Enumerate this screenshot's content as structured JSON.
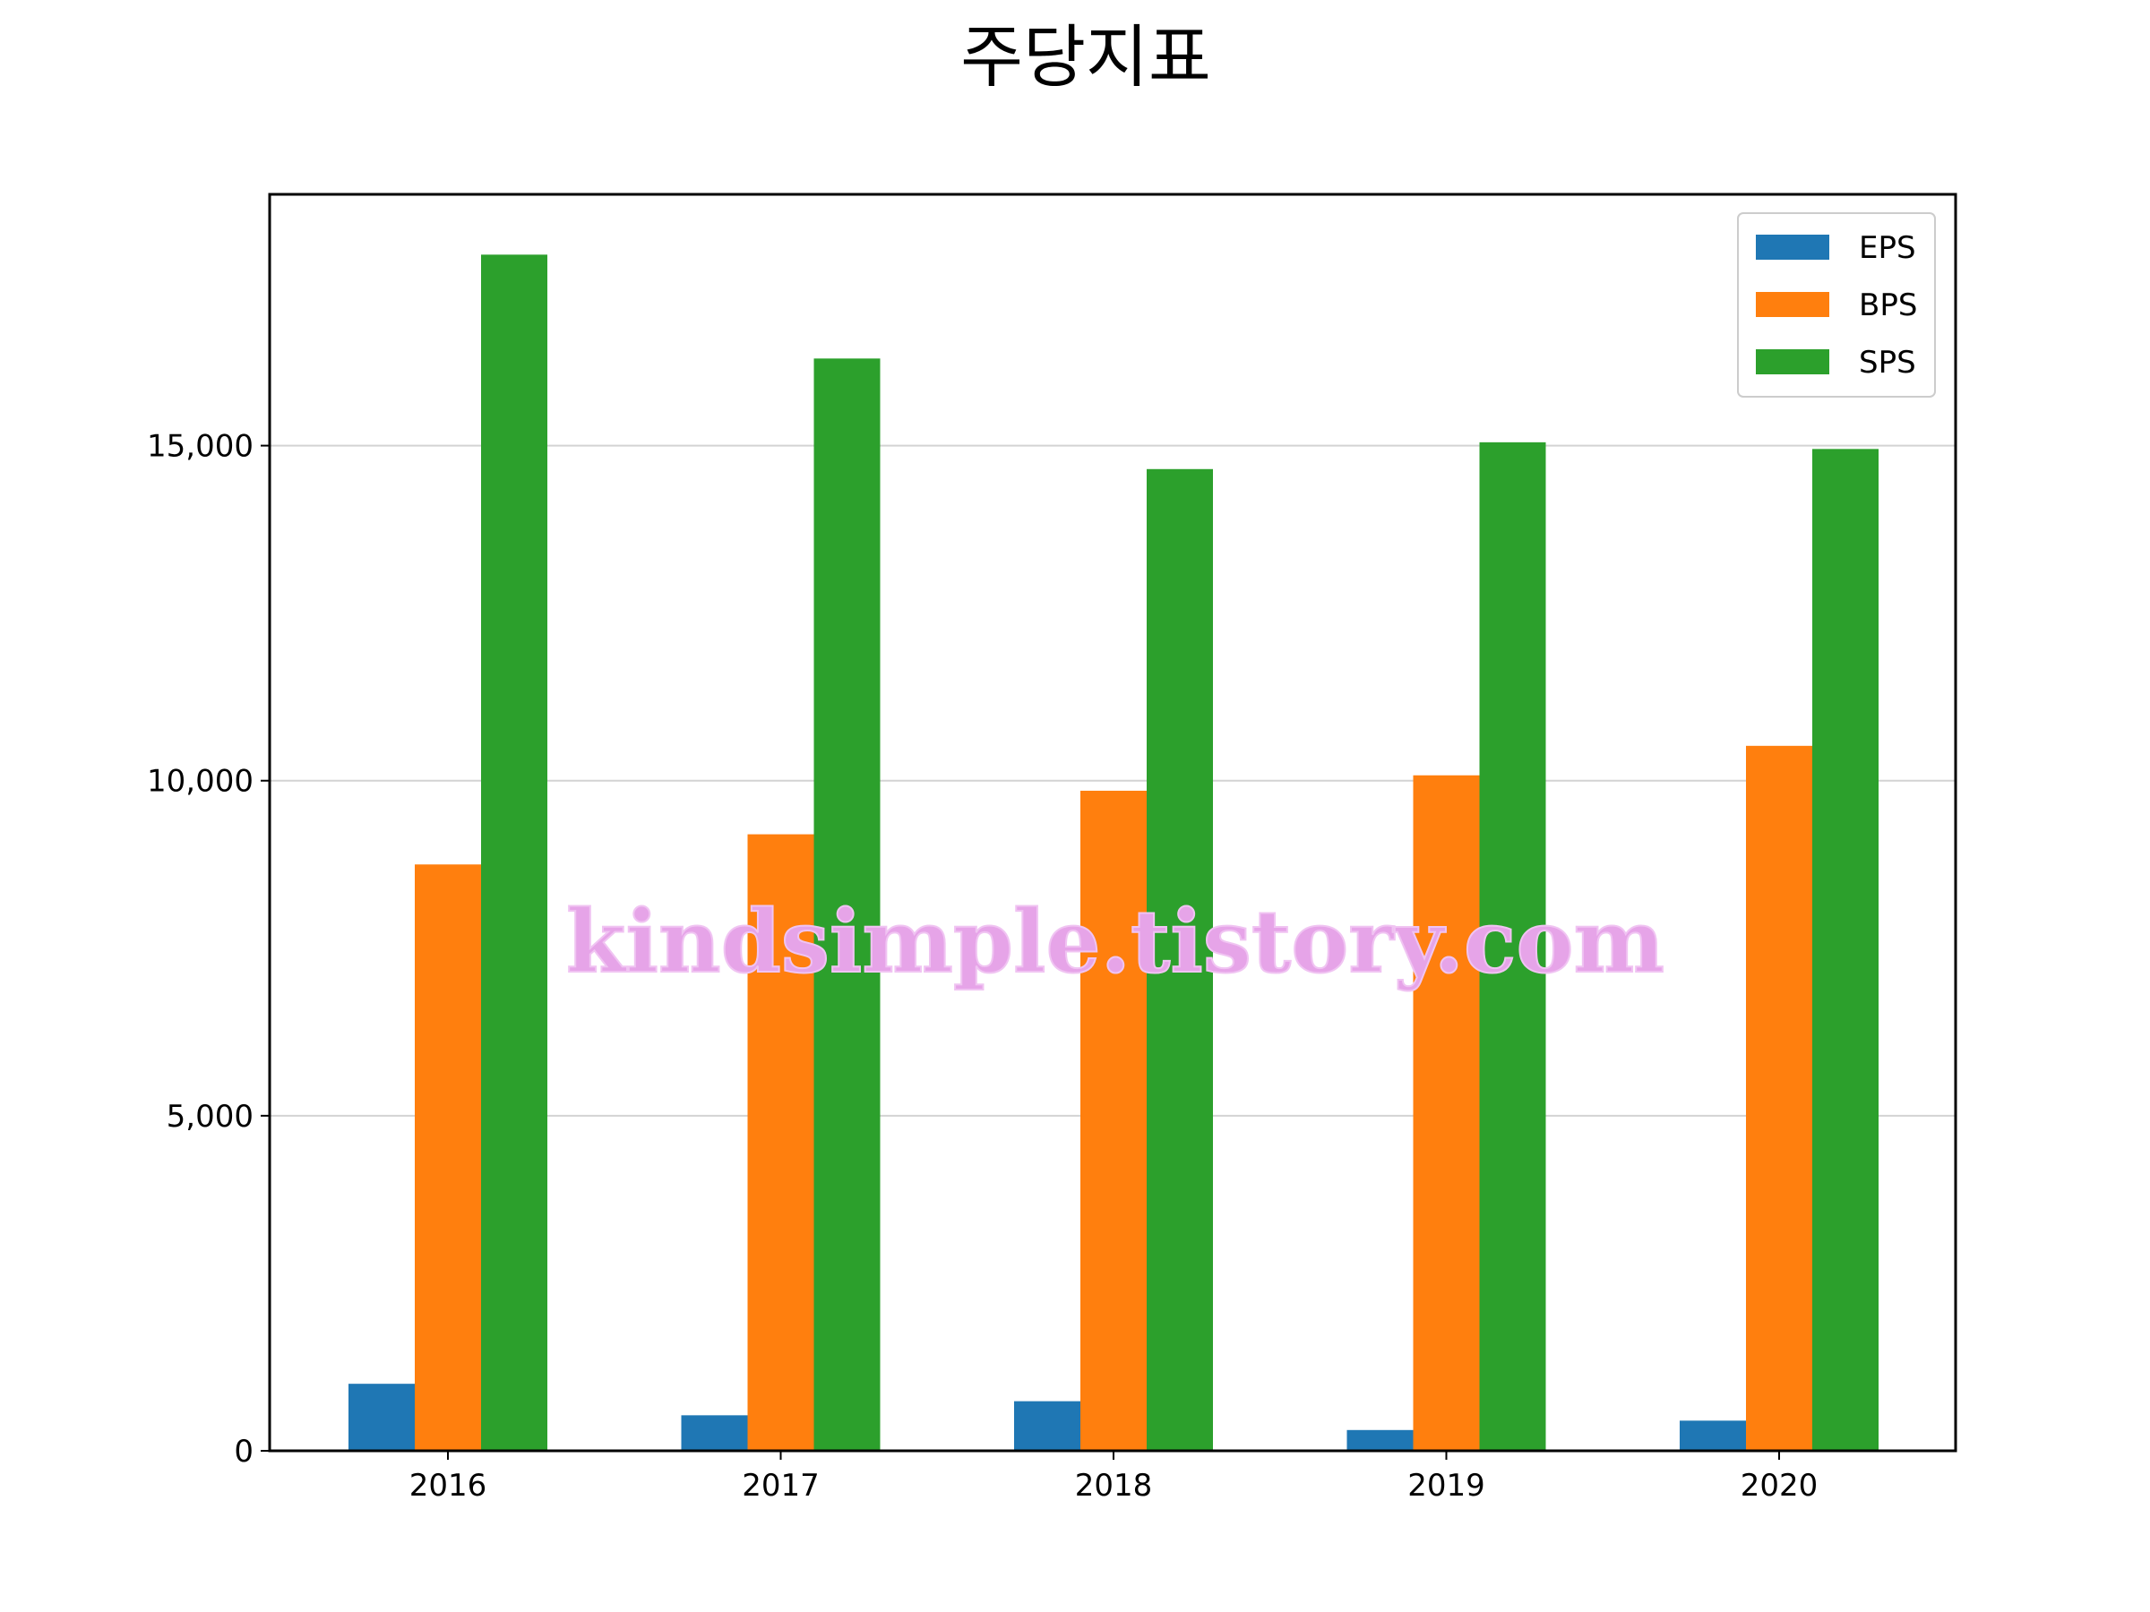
{
  "chart_data": {
    "type": "bar",
    "title": "주당지표",
    "xlabel": "",
    "ylabel": "",
    "categories": [
      "2016",
      "2017",
      "2018",
      "2019",
      "2020"
    ],
    "series": [
      {
        "name": "EPS",
        "color": "#1f77b4",
        "values": [
          1000,
          530,
          740,
          310,
          450
        ]
      },
      {
        "name": "BPS",
        "color": "#ff7f0e",
        "values": [
          8750,
          9200,
          9850,
          10080,
          10520
        ]
      },
      {
        "name": "SPS",
        "color": "#2ca02c",
        "values": [
          17850,
          16300,
          14650,
          15050,
          14950
        ]
      }
    ],
    "ylim": [
      0,
      18750
    ],
    "yticks": [
      0,
      5000,
      10000,
      15000
    ],
    "ytick_labels": [
      "0",
      "5,000",
      "10,000",
      "15,000"
    ],
    "grid": "horizontal",
    "legend": "top-right"
  },
  "watermark": "kindsimple.tistory.com"
}
